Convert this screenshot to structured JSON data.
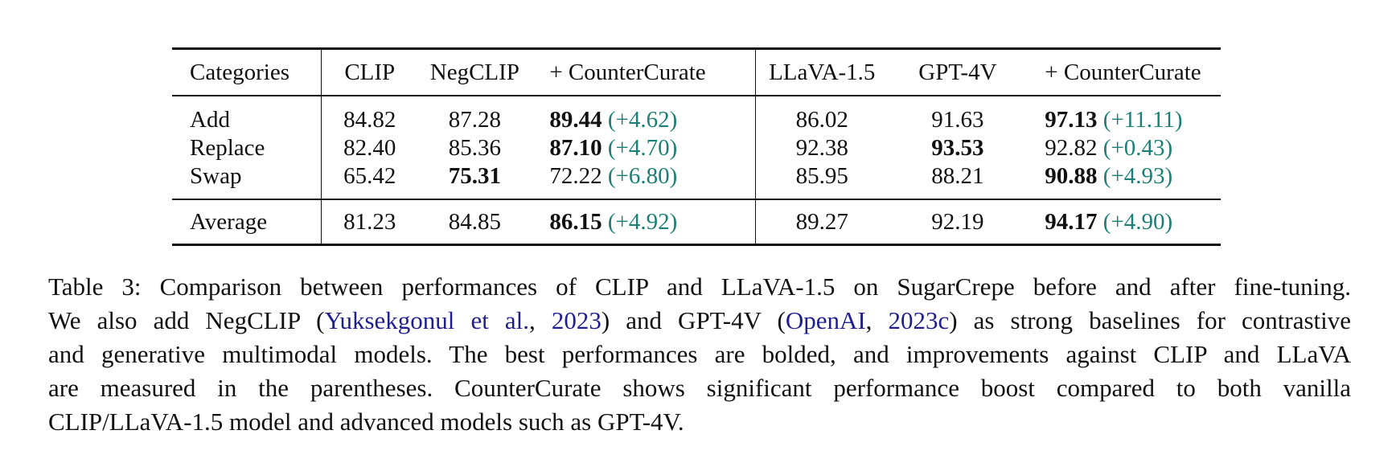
{
  "table": {
    "headers": {
      "categories": "Categories",
      "clip": "CLIP",
      "negclip": "NegCLIP",
      "cc1": "+ CounterCurate",
      "llava": "LLaVA-1.5",
      "gpt4v": "GPT-4V",
      "cc2": "+ CounterCurate"
    },
    "rows": [
      {
        "cat": "Add",
        "clip": "84.82",
        "negclip": "87.28",
        "cc1": "89.44",
        "cc1_imp": "(+4.62)",
        "llava": "86.02",
        "gpt4v": "91.63",
        "cc2": "97.13",
        "cc2_imp": "(+11.11)"
      },
      {
        "cat": "Replace",
        "clip": "82.40",
        "negclip": "85.36",
        "cc1": "87.10",
        "cc1_imp": "(+4.70)",
        "llava": "92.38",
        "gpt4v": "93.53",
        "cc2": "92.82",
        "cc2_imp": "(+0.43)"
      },
      {
        "cat": "Swap",
        "clip": "65.42",
        "negclip": "75.31",
        "cc1": "72.22",
        "cc1_imp": "(+6.80)",
        "llava": "85.95",
        "gpt4v": "88.21",
        "cc2": "90.88",
        "cc2_imp": "(+4.93)"
      }
    ],
    "average": {
      "cat": "Average",
      "clip": "81.23",
      "negclip": "84.85",
      "cc1": "86.15",
      "cc1_imp": "(+4.92)",
      "llava": "89.27",
      "gpt4v": "92.19",
      "cc2": "94.17",
      "cc2_imp": "(+4.90)"
    }
  },
  "caption": {
    "line1": "Table 3: Comparison between performances of CLIP and LLaVA-1.5 on SugarCrepe before and after fine-tuning.",
    "line2_a": "We also add NegCLIP (",
    "line2_cite1_a": "Yuksekgonul et al.",
    "line2_sep1": ", ",
    "line2_cite1_b": "2023",
    "line2_b": ") and GPT-4V (",
    "line2_cite2_a": "OpenAI",
    "line2_sep2": ", ",
    "line2_cite2_b": "2023c",
    "line2_c": ") as strong baselines for contrastive",
    "line3": "and generative multimodal models. The best performances are bolded, and improvements against CLIP and LLaVA",
    "line4": "are measured in the parentheses. CounterCurate shows significant performance boost compared to both vanilla",
    "line5": "CLIP/LLaVA-1.5 model and advanced models such as GPT-4V."
  },
  "colors": {
    "improvement": "#1a7f74",
    "citation": "#1f1f8f"
  }
}
